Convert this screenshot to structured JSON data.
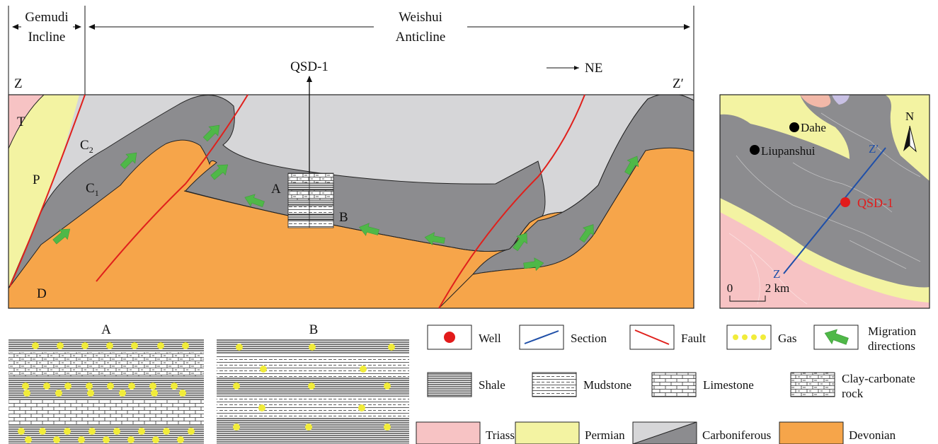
{
  "section": {
    "zone_left": [
      "Gemudi",
      "Incline"
    ],
    "zone_right": [
      "Weishui",
      "Anticline"
    ],
    "end_left": "Z",
    "end_right": "Z′",
    "well_label": "QSD-1",
    "direction": "NE",
    "unit_T": "T",
    "unit_P": "P",
    "unit_C2": "C",
    "unit_C2_sub": "2",
    "unit_C1": "C",
    "unit_C1_sub": "1",
    "unit_D": "D",
    "sample_A": "A",
    "sample_B": "B"
  },
  "map": {
    "north": "N",
    "town_1": "Dahe",
    "town_2": "Liupanshui",
    "well": "QSD-1",
    "section_start": "Z",
    "section_end": "Z′",
    "scale_zero": "0",
    "scale_value": "2 km"
  },
  "columns": {
    "a_title": "A",
    "b_title": "B"
  },
  "legend": {
    "well": "Well",
    "section": "Section",
    "fault": "Fault",
    "gas": "Gas",
    "migration": [
      "Migration",
      "directions"
    ],
    "shale": "Shale",
    "mudstone": "Mudstone",
    "limestone": "Limestone",
    "clay_carbonate": [
      "Clay-carbonate",
      "rock"
    ],
    "triassic": "Triassic",
    "permian": "Permian",
    "carboniferous": "Carboniferous",
    "devonian": "Devonian"
  },
  "colors": {
    "triassic": "#f7c3c4",
    "permian": "#f3f3a2",
    "carboniferous_light": "#d6d6d8",
    "carboniferous_dark": "#8c8c8f",
    "devonian": "#f6a54a",
    "fault": "#e0201c",
    "section_line": "#1f4fa8",
    "well": "#e21b1b",
    "gas": "#f1ec3a",
    "migration_arrow": "#4fb848"
  }
}
